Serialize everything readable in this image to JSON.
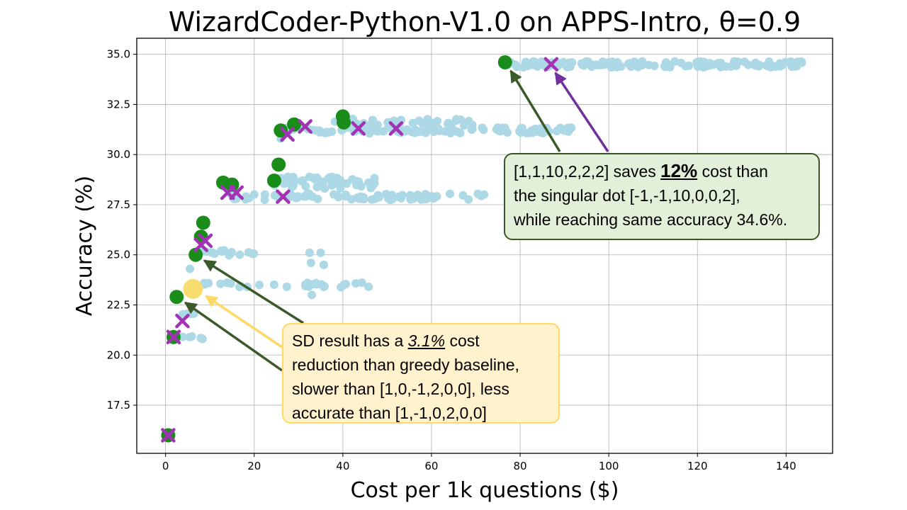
{
  "chart_data": {
    "type": "scatter",
    "title": "WizardCoder-Python-V1.0 on APPS-Intro, θ=0.9",
    "xlabel": "Cost per 1k questions ($)",
    "ylabel": "Accuracy (%)",
    "xlim": [
      -6.5,
      150.5
    ],
    "ylim": [
      15.1,
      35.8
    ],
    "xticks": [
      0,
      20,
      40,
      60,
      80,
      100,
      120,
      140
    ],
    "xtick_labels": [
      "0",
      "20",
      "40",
      "60",
      "80",
      "100",
      "120",
      "140"
    ],
    "yticks": [
      17.5,
      20.0,
      22.5,
      25.0,
      27.5,
      30.0,
      32.5,
      35.0
    ],
    "ytick_labels": [
      "17.5",
      "20.0",
      "22.5",
      "25.0",
      "27.5",
      "30.0",
      "32.5",
      "35.0"
    ],
    "grid": true,
    "colors": {
      "configs": "#add8e6",
      "pareto": "#1a8c1a",
      "singular": "#a233b5",
      "sd_highlight": "#f7dc6f",
      "arrow_green": "#3a5a2a",
      "arrow_purple": "#7030a0",
      "arrow_yellow": "#ffd966"
    },
    "clusters": [
      {
        "x_range": [
          0.5,
          1.5
        ],
        "y_center": 16.0,
        "y_jitter": 0.1,
        "count": 3
      },
      {
        "x_range": [
          1.5,
          11.0
        ],
        "y_center": 20.9,
        "y_jitter": 0.1,
        "count": 6
      },
      {
        "x_range": [
          2.5,
          6.5
        ],
        "y_center": 22.1,
        "y_jitter": 0.1,
        "count": 4
      },
      {
        "x_range": [
          6.0,
          47.0
        ],
        "y_center": 23.5,
        "y_jitter": 0.12,
        "count": 28
      },
      {
        "x_range": [
          7.0,
          22.0
        ],
        "y_center": 25.1,
        "y_jitter": 0.15,
        "count": 16
      },
      {
        "x_range": [
          14.0,
          72.0
        ],
        "y_center": 27.9,
        "y_jitter": 0.18,
        "count": 75
      },
      {
        "x_range": [
          24.0,
          48.0
        ],
        "y_center": 28.6,
        "y_jitter": 0.3,
        "count": 50
      },
      {
        "x_range": [
          26.0,
          92.0
        ],
        "y_center": 31.2,
        "y_jitter": 0.15,
        "count": 110
      },
      {
        "x_range": [
          38.0,
          70.0
        ],
        "y_center": 31.6,
        "y_jitter": 0.2,
        "count": 45
      },
      {
        "x_range": [
          77.0,
          144.0
        ],
        "y_center": 34.5,
        "y_jitter": 0.15,
        "count": 150
      }
    ],
    "extra_points": [
      [
        32.5,
        25.1
      ],
      [
        35.0,
        25.1
      ],
      [
        32.8,
        24.6
      ],
      [
        35.7,
        24.5
      ],
      [
        5.5,
        24.3
      ],
      [
        33.0,
        23.0
      ],
      [
        34.0,
        31.2
      ],
      [
        26.0,
        30.8
      ]
    ],
    "pareto_points": [
      [
        0.6,
        16.0
      ],
      [
        1.8,
        20.9
      ],
      [
        2.5,
        22.9
      ],
      [
        6.8,
        25.0
      ],
      [
        8.0,
        25.9
      ],
      [
        8.5,
        26.6
      ],
      [
        13.0,
        28.6
      ],
      [
        15.0,
        28.5
      ],
      [
        24.5,
        28.7
      ],
      [
        25.5,
        29.5
      ],
      [
        26.0,
        31.2
      ],
      [
        29.0,
        31.5
      ],
      [
        40.0,
        31.9
      ],
      [
        40.2,
        31.6
      ],
      [
        76.6,
        34.6
      ]
    ],
    "singular_points": [
      [
        0.6,
        16.0
      ],
      [
        1.8,
        20.9
      ],
      [
        3.8,
        21.7
      ],
      [
        8.0,
        25.5
      ],
      [
        9.0,
        25.7
      ],
      [
        14.0,
        28.1
      ],
      [
        16.0,
        28.1
      ],
      [
        26.5,
        27.9
      ],
      [
        27.5,
        31.0
      ],
      [
        31.5,
        31.4
      ],
      [
        43.5,
        31.3
      ],
      [
        52.0,
        31.3
      ],
      [
        87.0,
        34.5
      ]
    ],
    "sd_point": [
      6.2,
      23.3
    ],
    "annotations": [
      {
        "text": "[1,1,10,2,2,2] saves 12% cost than the singular dot [-1,-1,10,0,0,2], while reaching same accuracy 34.6%.",
        "arrow_targets": [
          [
            76.6,
            34.6
          ],
          [
            87.0,
            34.5
          ]
        ]
      },
      {
        "text": "SD result has a 3.1% cost reduction than greedy baseline, slower than [1,0,-1,2,0,0], less accurate than [1,-1,0,2,0,0]",
        "arrow_targets": [
          [
            6.5,
            23.3
          ],
          [
            6.8,
            25.0
          ],
          [
            2.5,
            22.9
          ]
        ]
      }
    ]
  },
  "annotation_green": {
    "line1_pre": "[1,1,10,2,2,2] saves ",
    "line1_em": "12%",
    "line1_post": " cost than",
    "line2": "the singular dot [-1,-1,10,0,0,2],",
    "line3": "while reaching same accuracy 34.6%."
  },
  "annotation_yellow": {
    "line1_pre": "SD result has a ",
    "line1_em": "3.1%",
    "line1_post": " cost",
    "line2": "reduction than greedy baseline,",
    "line3": "slower than [1,0,-1,2,0,0], less",
    "line4": "accurate than [1,-1,0,2,0,0]"
  }
}
